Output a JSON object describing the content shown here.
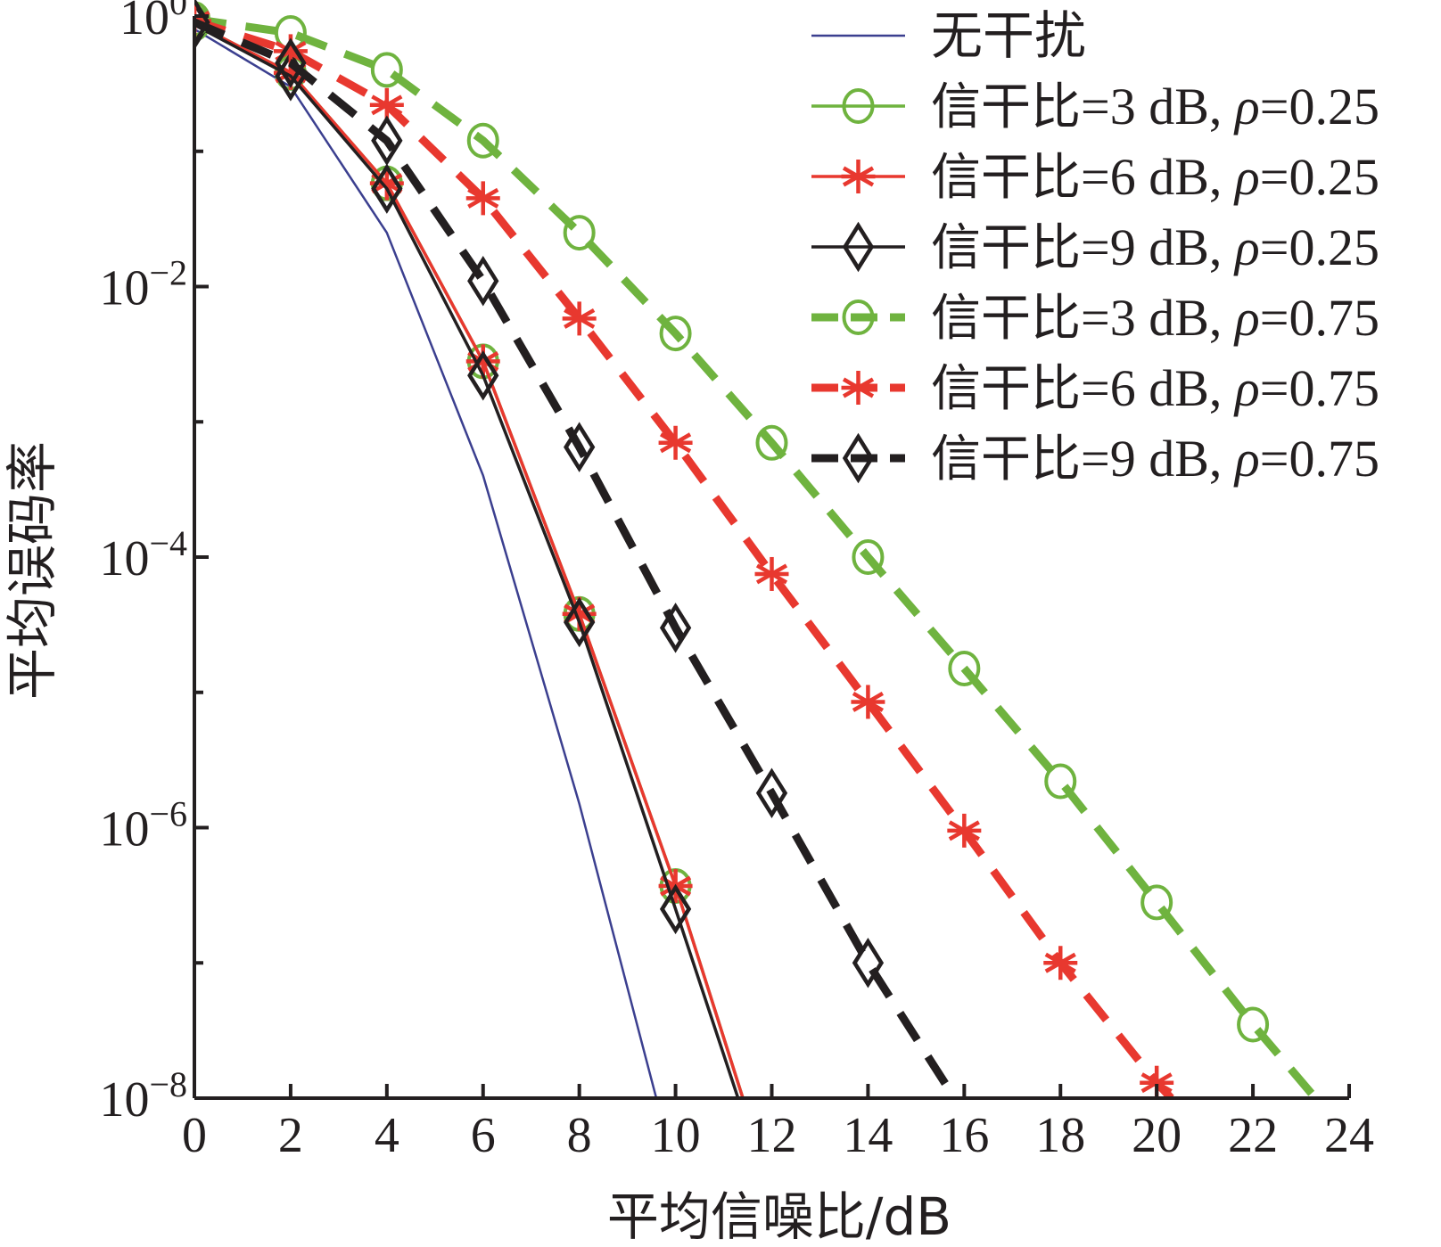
{
  "chart_data": {
    "type": "line",
    "xlabel": "平均信噪比/dB",
    "ylabel": "平均误码率",
    "xlim": [
      0,
      24
    ],
    "ylim_log10": [
      -8,
      0
    ],
    "y_scale": "log",
    "grid": false,
    "legend_position": "top-right",
    "x_ticks": [
      "0",
      "2",
      "4",
      "6",
      "8",
      "10",
      "12",
      "14",
      "16",
      "18",
      "20",
      "22",
      "24"
    ],
    "y_ticks": [
      {
        "base": "10",
        "exp": "0"
      },
      {
        "base": "10",
        "exp": "−2"
      },
      {
        "base": "10",
        "exp": "−4"
      },
      {
        "base": "10",
        "exp": "−6"
      },
      {
        "base": "10",
        "exp": "−8"
      }
    ],
    "series": [
      {
        "name": "无干扰",
        "color": "#3b3f8f",
        "line_style": "solid",
        "marker": "none",
        "x": [
          0,
          2,
          4,
          6,
          8,
          9.6
        ],
        "y": [
          0.8,
          0.3,
          0.025,
          0.0004,
          1.5e-06,
          1e-08
        ]
      },
      {
        "name_prefix": "信干比=3 dB, ",
        "name_symbol": "ρ",
        "name_suffix": "=0.25",
        "color": "#6fb33f",
        "line_style": "solid",
        "marker": "circle",
        "x": [
          0,
          2,
          4,
          6,
          8,
          10,
          11.4
        ],
        "y": [
          0.88,
          0.38,
          0.058,
          0.0028,
          3.8e-05,
          3.7e-07,
          1e-08
        ]
      },
      {
        "name_prefix": "信干比=6 dB, ",
        "name_symbol": "ρ",
        "name_suffix": "=0.25",
        "color": "#e8382f",
        "line_style": "solid",
        "marker": "asterisk",
        "x": [
          0,
          2,
          4,
          6,
          8,
          10,
          11.4
        ],
        "y": [
          0.88,
          0.38,
          0.058,
          0.0028,
          3.8e-05,
          3.7e-07,
          1e-08
        ]
      },
      {
        "name_prefix": "信干比=9 dB, ",
        "name_symbol": "ρ",
        "name_suffix": "=0.25",
        "color": "#231f20",
        "line_style": "solid",
        "marker": "diamond",
        "x": [
          0,
          2,
          4,
          6,
          8,
          10,
          11.3
        ],
        "y": [
          0.86,
          0.36,
          0.053,
          0.0022,
          3.3e-05,
          2.5e-07,
          1e-08
        ]
      },
      {
        "name_prefix": "信干比=3 dB, ",
        "name_symbol": "ρ",
        "name_suffix": "=0.75",
        "color": "#6fb33f",
        "line_style": "dashed",
        "marker": "circle",
        "x": [
          0,
          2,
          4,
          6,
          8,
          10,
          12,
          14,
          16,
          18,
          20,
          22,
          23.3
        ],
        "y": [
          0.95,
          0.75,
          0.4,
          0.12,
          0.025,
          0.0045,
          0.0007,
          0.0001,
          1.5e-05,
          2.2e-06,
          2.8e-07,
          3.5e-08,
          1e-08
        ]
      },
      {
        "name_prefix": "信干比=6 dB, ",
        "name_symbol": "ρ",
        "name_suffix": "=0.75",
        "color": "#e8382f",
        "line_style": "dashed",
        "marker": "asterisk",
        "x": [
          0,
          2,
          4,
          6,
          8,
          10,
          12,
          14,
          16,
          18,
          20,
          20.3
        ],
        "y": [
          0.92,
          0.55,
          0.22,
          0.045,
          0.0058,
          0.0007,
          7.5e-05,
          8.5e-06,
          9.5e-07,
          1e-07,
          1.3e-08,
          1e-08
        ]
      },
      {
        "name_prefix": "信干比=9 dB, ",
        "name_symbol": "ρ",
        "name_suffix": "=0.75",
        "color": "#231f20",
        "line_style": "dashed",
        "marker": "diamond",
        "x": [
          0,
          2,
          4,
          6,
          8,
          10,
          12,
          14,
          15.8
        ],
        "y": [
          0.9,
          0.45,
          0.12,
          0.011,
          0.00065,
          3e-05,
          1.8e-06,
          1e-07,
          1e-08
        ]
      }
    ]
  }
}
